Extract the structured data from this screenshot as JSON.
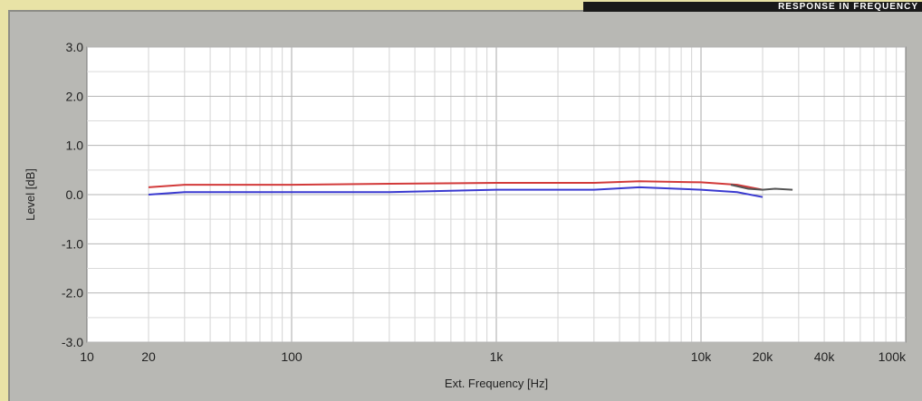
{
  "header": {
    "title": "RESPONSE IN FREQUENCY"
  },
  "chart_data": {
    "type": "line",
    "title": "",
    "xlabel": "Ext. Frequency [Hz]",
    "ylabel": "Level [dB]",
    "xscale": "log",
    "xlim": [
      10,
      100000
    ],
    "ylim": [
      -3.0,
      3.0
    ],
    "grid": true,
    "x_ticks": [
      10,
      20,
      100,
      1000,
      10000,
      20000,
      40000,
      100000
    ],
    "x_tick_labels": [
      "10",
      "20",
      "100",
      "1k",
      "10k",
      "20k",
      "40k",
      "100k"
    ],
    "y_ticks": [
      3.0,
      2.0,
      1.0,
      0.0,
      -1.0,
      -2.0,
      -3.0
    ],
    "y_tick_labels": [
      "3.0",
      "2.0",
      "1.0",
      "0.0",
      "-1.0",
      "-2.0",
      "-3.0"
    ],
    "series": [
      {
        "color": "#d23a3a",
        "x": [
          20,
          30,
          100,
          300,
          1000,
          3000,
          5000,
          10000,
          15000,
          20000
        ],
        "y": [
          0.15,
          0.2,
          0.2,
          0.22,
          0.24,
          0.24,
          0.27,
          0.25,
          0.2,
          0.1
        ]
      },
      {
        "color": "#3a3ad0",
        "x": [
          20,
          30,
          100,
          300,
          1000,
          3000,
          5000,
          10000,
          15000,
          20000
        ],
        "y": [
          0.0,
          0.05,
          0.05,
          0.05,
          0.1,
          0.1,
          0.15,
          0.1,
          0.05,
          -0.05
        ]
      },
      {
        "color": "#555555",
        "x": [
          14000,
          17000,
          20000,
          23000,
          28000
        ],
        "y": [
          0.2,
          0.12,
          0.1,
          0.12,
          0.1
        ]
      }
    ]
  }
}
